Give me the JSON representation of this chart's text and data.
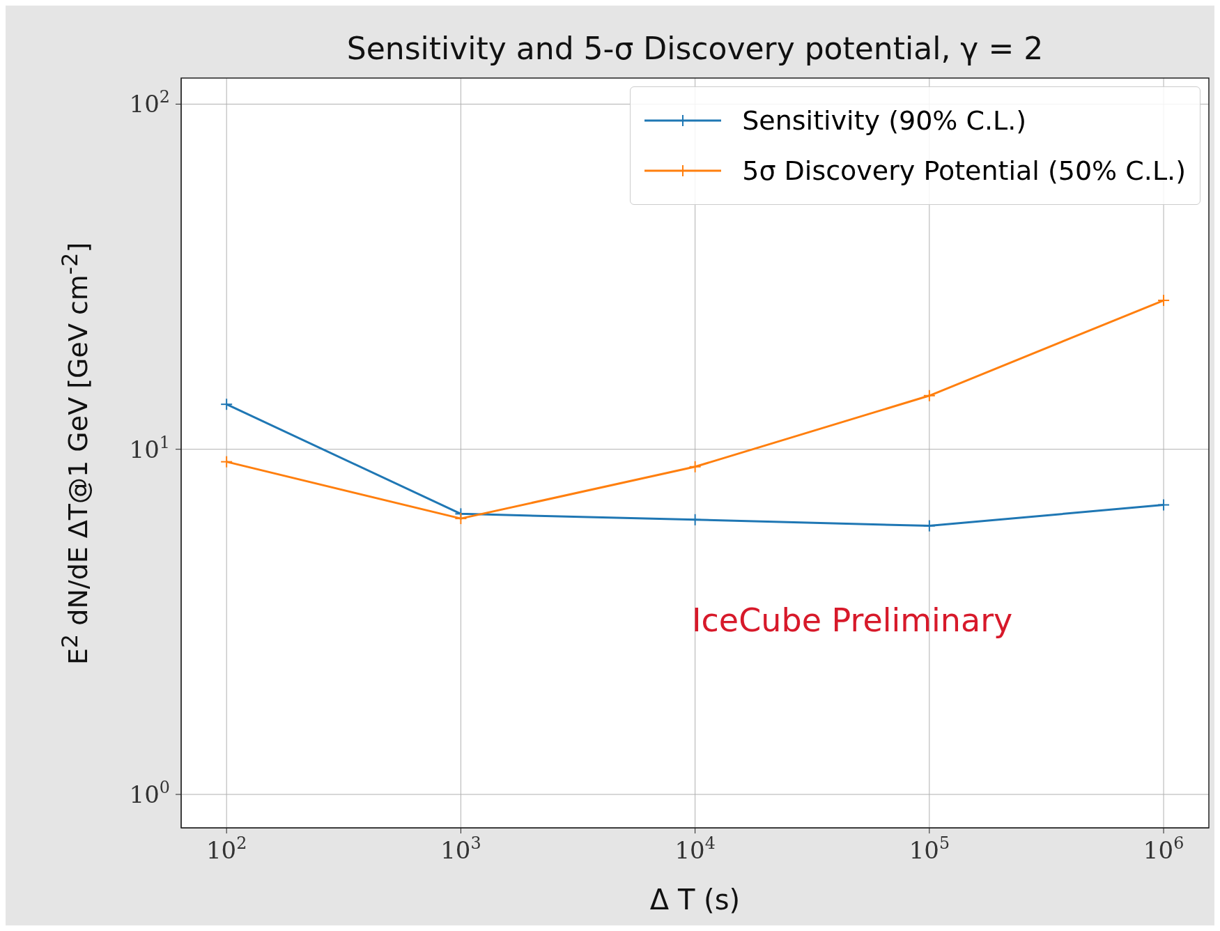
{
  "chart_data": {
    "type": "line",
    "title": "Sensitivity and 5-σ Discovery potential, γ = 2",
    "xlabel": "Δ T (s)",
    "ylabel": "E$^{2}$ dN/dE ΔT@1 GeV [GeV cm$^{-2}$]",
    "x": [
      100,
      1000,
      10000,
      100000,
      1000000
    ],
    "series": [
      {
        "name": "Sensitivity (90% C.L.)",
        "color": "#1f77b4",
        "values": [
          13.5,
          6.5,
          6.25,
          6.0,
          6.9
        ]
      },
      {
        "name": "5σ Discovery Potential (50% C.L.)",
        "color": "#ff7f0e",
        "values": [
          9.2,
          6.3,
          8.9,
          14.3,
          27
        ]
      }
    ],
    "log": "xy",
    "xlim": [
      64,
      1560000
    ],
    "ylim": [
      0.8,
      119
    ],
    "xticks": [
      {
        "value": 100,
        "label": "10$^{2}$"
      },
      {
        "value": 1000,
        "label": "10$^{3}$"
      },
      {
        "value": 10000,
        "label": "10$^{4}$"
      },
      {
        "value": 100000,
        "label": "10$^{5}$"
      },
      {
        "value": 1000000,
        "label": "10$^{6}$"
      }
    ],
    "yticks": [
      {
        "value": 1,
        "label": "10$^{0}$"
      },
      {
        "value": 10,
        "label": "10$^{1}$"
      },
      {
        "value": 100,
        "label": "10$^{2}$"
      }
    ],
    "grid": true,
    "legend": "top right",
    "marker": "cross",
    "line_style": "solid",
    "annotations": [
      "IceCube Preliminary"
    ]
  }
}
